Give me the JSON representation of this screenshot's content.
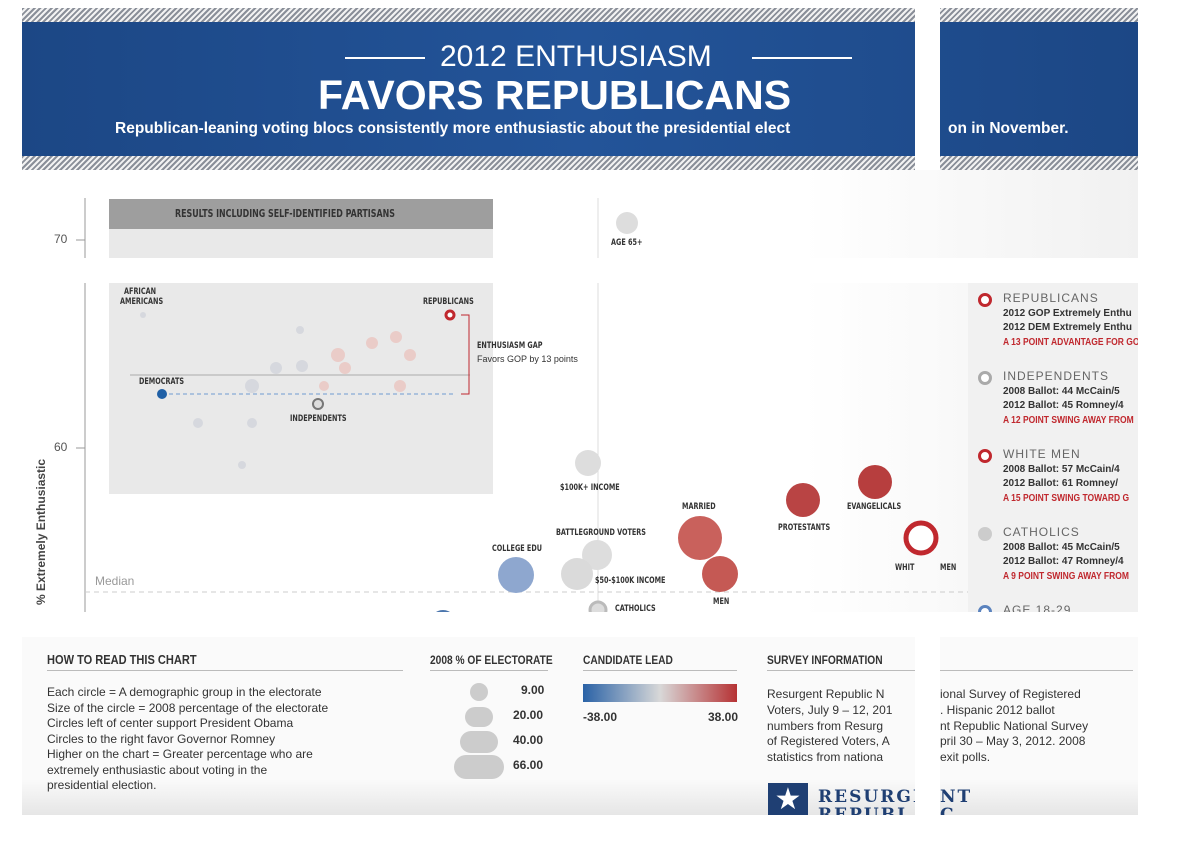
{
  "header": {
    "title_top": "2012 ENTHUSIASM",
    "title_main": "FAVORS REPUBLICANS",
    "subtitle_left": "Republican-leaning voting blocs consistently more enthusiastic about the presidential elect",
    "subtitle_right": "on in November."
  },
  "chart": {
    "y_axis_label": "% Extremely Enthusiastic",
    "yticks": [
      "70",
      "60"
    ],
    "median": "Median",
    "bubble_labels": [
      "AGE 65+",
      "$100K+ INCOME",
      "MARRIED",
      "EVANGELICALS",
      "PROTESTANTS",
      "BATTLEGROUND VOTERS",
      "COLLEGE EDU",
      "$50-$100K INCOME",
      "MEN",
      "CATHOLICS",
      "WHIT",
      "MEN"
    ],
    "inset": {
      "title": "RESULTS INCLUDING SELF-IDENTIFIED PARTISANS",
      "labels": [
        "AFRICAN",
        "AMERICANS",
        "REPUBLICANS",
        "ENTHUSIASM GAP",
        "Favors GOP by 13 points",
        "DEMOCRATS",
        "INDEPENDENTS"
      ]
    }
  },
  "legend": [
    {
      "title": "REPUBLICANS",
      "lines": [
        "2012 GOP Extremely Enthu",
        "2012 DEM Extremely Enthu"
      ],
      "note": "A 13 POINT ADVANTAGE FOR GO"
    },
    {
      "title": "INDEPENDENTS",
      "lines": [
        "2008 Ballot: 44 McCain/5",
        "2012 Ballot: 45 Romney/4"
      ],
      "note": "A 12 POINT SWING AWAY FROM"
    },
    {
      "title": "WHITE MEN",
      "lines": [
        "2008 Ballot: 57 McCain/4",
        "2012 Ballot:  61 Romney/"
      ],
      "note": "A 15 POINT SWING TOWARD G"
    },
    {
      "title": "CATHOLICS",
      "lines": [
        "2008 Ballot: 45 McCain/5",
        "2012 Ballot: 47 Romney/4"
      ],
      "note": "A 9 POINT SWING AWAY FROM"
    },
    {
      "title": "AGE 18-29",
      "lines": [],
      "note": null
    }
  ],
  "how_to_read": {
    "title": "HOW TO READ THIS CHART",
    "lines": [
      "Each circle = A demographic group in the electorate",
      "Size of the circle = 2008 percentage of the electorate",
      "Circles left of center support President Obama",
      "Circles to the right favor Governor Romney",
      "Higher on the chart = Greater percentage who are",
      "extremely enthusiastic about voting in the",
      "presidential election."
    ]
  },
  "electorate": {
    "title": "2008 % OF ELECTORATE",
    "sizes": [
      "9.00",
      "20.00",
      "40.00",
      "66.00"
    ]
  },
  "candidate_lead": {
    "title": "CANDIDATE LEAD",
    "min": "-38.00",
    "max": "38.00"
  },
  "survey": {
    "title": "SURVEY INFORMATION",
    "left": [
      "Resurgent Republic N",
      "Voters, July 9 – 12, 201",
      "numbers from Resurg",
      "of Registered Voters, A",
      "statistics from nationa"
    ],
    "right": [
      "ional Survey of Registered",
      ". Hispanic 2012 ballot",
      "nt Republic National Survey",
      "pril 30 – May 3, 2012. 2008",
      "exit polls."
    ],
    "logo_left": [
      "RESURGE",
      "REPUBL"
    ],
    "logo_right": [
      "NT",
      "C"
    ]
  }
}
